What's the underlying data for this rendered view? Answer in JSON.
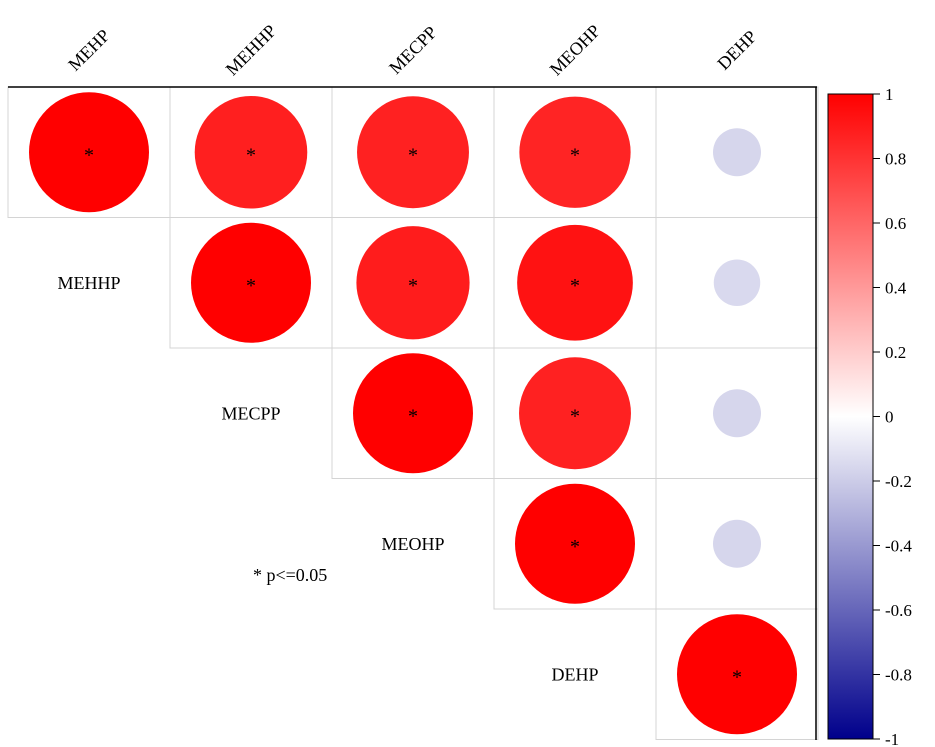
{
  "chart_data": {
    "type": "heatmap",
    "variables": [
      "MEHP",
      "MEHHP",
      "MECPP",
      "MEOHP",
      "DEHP"
    ],
    "matrix_type": "upper-triangular correlation, circle size and color encode r",
    "values": [
      [
        1.0,
        0.88,
        0.87,
        0.86,
        -0.16
      ],
      [
        null,
        1.0,
        0.89,
        0.93,
        -0.15
      ],
      [
        null,
        null,
        1.0,
        0.87,
        -0.16
      ],
      [
        null,
        null,
        null,
        1.0,
        -0.16
      ],
      [
        null,
        null,
        null,
        null,
        1.0
      ]
    ],
    "significant": [
      [
        true,
        true,
        true,
        true,
        false
      ],
      [
        null,
        true,
        true,
        true,
        false
      ],
      [
        null,
        null,
        true,
        true,
        false
      ],
      [
        null,
        null,
        null,
        true,
        false
      ],
      [
        null,
        null,
        null,
        null,
        true
      ]
    ],
    "significance_marker": "*",
    "significance_note": "* p<=0.05",
    "colorbar": {
      "min": -1,
      "max": 1,
      "ticks": [
        "1",
        "0.8",
        "0.6",
        "0.4",
        "0.2",
        "0",
        "-0.2",
        "-0.4",
        "-0.6",
        "-0.8",
        "-1"
      ],
      "colors": [
        "#00008b",
        "#ffffff",
        "#ff0000"
      ]
    },
    "grid": true,
    "legend_placement": "right"
  }
}
